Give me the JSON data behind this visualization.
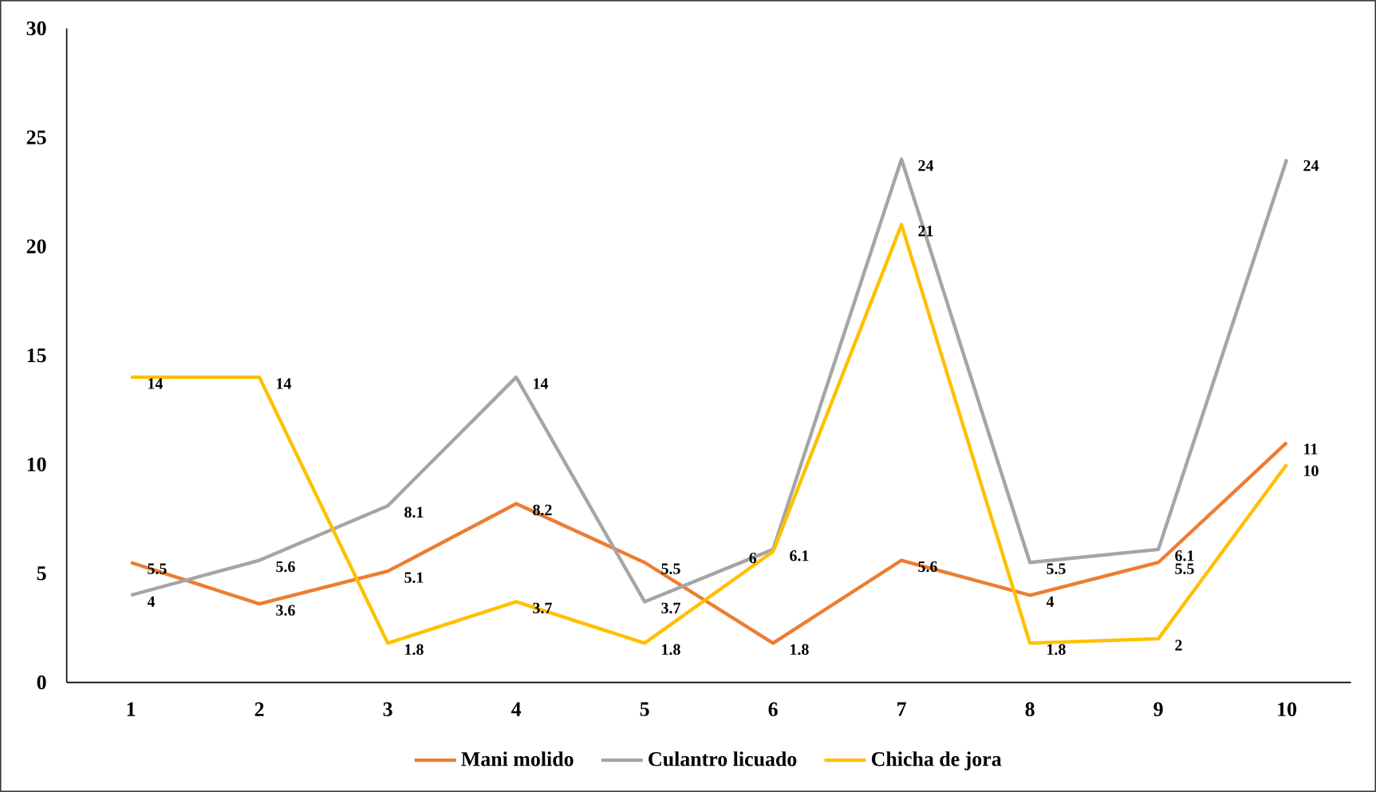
{
  "chart_data": {
    "type": "line",
    "categories": [
      "1",
      "2",
      "3",
      "4",
      "5",
      "6",
      "7",
      "8",
      "9",
      "10"
    ],
    "series": [
      {
        "name": "Mani molido",
        "color": "#ed7d31",
        "values": [
          5.5,
          3.6,
          5.1,
          8.2,
          5.5,
          1.8,
          5.6,
          4,
          5.5,
          11
        ]
      },
      {
        "name": "Culantro licuado",
        "color": "#a5a5a5",
        "values": [
          4,
          5.6,
          8.1,
          14,
          3.7,
          6.1,
          24,
          5.5,
          6.1,
          24
        ]
      },
      {
        "name": "Chicha de jora",
        "color": "#ffc000",
        "values": [
          14,
          14,
          1.8,
          3.7,
          1.8,
          6,
          21,
          1.8,
          2,
          10
        ]
      }
    ],
    "ylim": [
      0,
      30
    ],
    "yticks": [
      0,
      5,
      10,
      15,
      20,
      25,
      30
    ],
    "legend": "bottom",
    "data_labels": true,
    "grid": false
  }
}
